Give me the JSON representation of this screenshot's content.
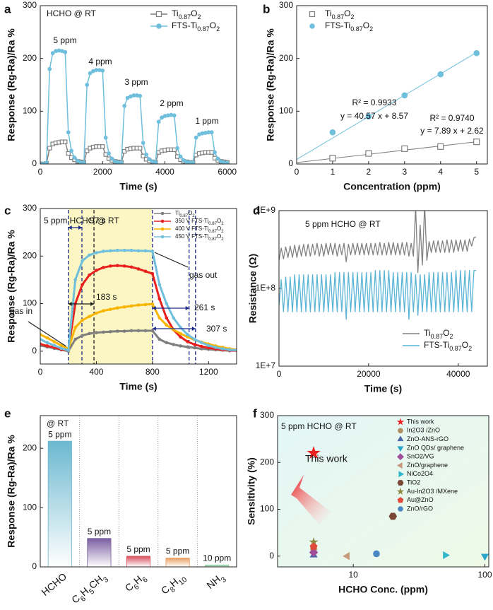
{
  "chart_data": [
    {
      "type": "line",
      "label": "a",
      "xlabel": "Time (s)",
      "ylabel": "Response (Rg-Ra)/Ra %",
      "annotations": [
        "HCHO @ RT",
        "5 ppm",
        "4 ppm",
        "3 ppm",
        "2 ppm",
        "1 ppm"
      ],
      "xlim": [
        0,
        6300
      ],
      "ylim": [
        0,
        300
      ],
      "xticks": [
        0,
        2000,
        4000,
        6000
      ],
      "yticks": [
        0,
        100,
        200,
        300
      ],
      "x": [
        0,
        100,
        200,
        300,
        400,
        500,
        600,
        700,
        800,
        900,
        1000,
        1100,
        1200,
        1300,
        1400,
        1500,
        1600,
        1700,
        1800,
        1900,
        2000,
        2100,
        2200,
        2300,
        2400,
        2500,
        2600,
        2700,
        2800,
        2900,
        3000,
        3100,
        3200,
        3300,
        3400,
        3500,
        3600,
        3700,
        3800,
        3900,
        4000,
        4100,
        4200,
        4300,
        4400,
        4500,
        4600,
        4700,
        4800,
        4900,
        5000,
        5100,
        5200,
        5300,
        5400,
        5500,
        5600,
        5700,
        5800,
        5900,
        6000
      ],
      "series": [
        {
          "name": "Ti0.87O2",
          "color": "#7f7f7f",
          "marker": "square",
          "values": [
            0,
            0,
            1,
            30,
            38,
            40,
            41,
            42,
            42,
            20,
            12,
            8,
            5,
            4,
            3,
            25,
            30,
            32,
            33,
            33,
            33,
            18,
            10,
            7,
            5,
            4,
            3,
            24,
            28,
            29,
            30,
            30,
            30,
            15,
            9,
            6,
            4,
            3,
            22,
            25,
            26,
            27,
            27,
            27,
            14,
            8,
            5,
            4,
            3,
            3,
            17,
            20,
            21,
            22,
            22,
            22,
            11,
            7,
            5,
            4,
            3
          ]
        },
        {
          "name": "FTS-Ti0.87O2",
          "color": "#6fbfdc",
          "marker": "circle",
          "values": [
            0,
            0,
            2,
            180,
            210,
            214,
            215,
            214,
            212,
            60,
            25,
            12,
            6,
            3,
            2,
            150,
            172,
            176,
            178,
            178,
            177,
            50,
            20,
            10,
            5,
            3,
            2,
            110,
            125,
            128,
            130,
            130,
            129,
            40,
            18,
            9,
            5,
            3,
            80,
            88,
            91,
            92,
            93,
            92,
            30,
            14,
            7,
            4,
            3,
            2,
            50,
            56,
            58,
            59,
            60,
            60,
            22,
            10,
            5,
            3,
            2
          ]
        }
      ]
    },
    {
      "type": "scatter",
      "label": "b",
      "xlabel": "Concentration (ppm)",
      "ylabel": "Response (Rg-Ra)/Ra %",
      "xlim": [
        0,
        5.3
      ],
      "ylim": [
        0,
        300
      ],
      "xticks": [
        0,
        1,
        2,
        3,
        4,
        5
      ],
      "yticks": [
        0,
        100,
        200,
        300
      ],
      "x": [
        1,
        2,
        3,
        4,
        5
      ],
      "series": [
        {
          "name": "Ti0.87O2",
          "color": "#7f7f7f",
          "marker": "square",
          "values": [
            11,
            20,
            29,
            33,
            42
          ],
          "fit_slope": 7.89,
          "fit_intercept": 2.62,
          "r2_text": "R² = 0.9740",
          "equation": "y = 7.89 x + 2.62"
        },
        {
          "name": "FTS-Ti0.87O2",
          "color": "#6fbfdc",
          "marker": "circle",
          "values": [
            60,
            90,
            130,
            170,
            210
          ],
          "fit_slope": 40.57,
          "fit_intercept": 8.57,
          "r2_text": "R² = 0.9933",
          "equation": "y = 40.57 x + 8.57"
        }
      ]
    },
    {
      "type": "line",
      "label": "c",
      "xlabel": "Time (s)",
      "ylabel": "Response (Rg-Ra)/Ra %",
      "annotations": [
        "5 ppm HCHO @ RT",
        "97 s",
        "183 s",
        "261 s",
        "307 s",
        "gas in",
        "gas out"
      ],
      "highlight_x": [
        200,
        800
      ],
      "reference_lines_x": [
        200,
        297,
        383,
        800,
        1061,
        1107
      ],
      "xlim": [
        0,
        1400
      ],
      "ylim": [
        -27,
        300
      ],
      "xticks": [
        0,
        400,
        800,
        1200
      ],
      "yticks": [
        0,
        100,
        200,
        300
      ],
      "x": [
        0,
        50,
        100,
        150,
        200,
        250,
        300,
        350,
        400,
        450,
        500,
        550,
        600,
        650,
        700,
        750,
        800,
        850,
        900,
        950,
        1000,
        1050,
        1100,
        1150,
        1200,
        1250,
        1300,
        1350,
        1400
      ],
      "series": [
        {
          "name": "Ti0.87O2",
          "color": "#7f7f7f",
          "marker": "circle",
          "values": [
            12,
            9,
            6,
            3,
            0,
            25,
            33,
            37,
            39,
            40,
            41,
            42,
            42,
            43,
            43,
            43,
            43,
            25,
            18,
            14,
            11,
            9,
            7,
            5,
            4,
            3,
            2,
            1,
            1
          ]
        },
        {
          "name": "350 V FTS-Ti0.87O2",
          "color": "#e8201e",
          "marker": "circle",
          "values": [
            15,
            11,
            8,
            4,
            2,
            100,
            140,
            160,
            170,
            176,
            179,
            180,
            179,
            177,
            173,
            168,
            163,
            110,
            70,
            45,
            30,
            20,
            14,
            10,
            7,
            5,
            3,
            2,
            1
          ]
        },
        {
          "name": "400 V FTS-Ti0.87O2",
          "color": "#f7b500",
          "marker": "circle",
          "values": [
            35,
            28,
            20,
            12,
            5,
            50,
            65,
            73,
            80,
            85,
            88,
            91,
            93,
            95,
            97,
            98,
            99,
            70,
            55,
            45,
            37,
            30,
            24,
            19,
            15,
            11,
            8,
            5,
            3
          ]
        },
        {
          "name": "450 V FTS-Ti0.87O2",
          "color": "#6fbfdc",
          "marker": "circle",
          "values": [
            25,
            18,
            12,
            6,
            2,
            150,
            190,
            202,
            207,
            210,
            211,
            212,
            212,
            212,
            211,
            211,
            210,
            140,
            100,
            70,
            50,
            35,
            25,
            18,
            12,
            8,
            5,
            3,
            2
          ]
        }
      ]
    },
    {
      "type": "line",
      "label": "d",
      "xlabel": "Time (s)",
      "ylabel": "Resistance (Ω)",
      "ylog": true,
      "annotations": [
        "5 ppm HCHO @ RT"
      ],
      "xlim": [
        0,
        46500
      ],
      "ylim": [
        10000000,
        1000000000
      ],
      "xticks": [
        0,
        20000,
        40000
      ],
      "yticks": [
        {
          "value": 10000000,
          "label": "1E+7"
        },
        {
          "value": 100000000,
          "label": "1E+8"
        },
        {
          "value": 1000000000,
          "label": "1E+9"
        }
      ],
      "x": [
        0,
        500,
        1000,
        1500,
        2000,
        2500,
        3000,
        3500,
        4000,
        4500,
        5000,
        5500,
        6000,
        6500,
        7000,
        7500,
        8000,
        8500,
        9000,
        9500,
        10000,
        10500,
        11000,
        11500,
        12000,
        12500,
        13000,
        13500,
        14000,
        14500,
        15000,
        15500,
        16000,
        16500,
        17000,
        17500,
        18000,
        18500,
        19000,
        19500,
        20000,
        20500,
        21000,
        21500,
        22000,
        22500,
        23000,
        23500,
        24000,
        24500,
        25000,
        25500,
        26000,
        26500,
        27000,
        27500,
        28000,
        28500,
        29000,
        29500,
        30000,
        30500,
        31000,
        31500,
        32000,
        32500,
        33000,
        33500,
        34000,
        34500,
        35000,
        35500,
        36000,
        36500,
        37000,
        37500,
        38000,
        38500,
        39000,
        39500,
        40000,
        40500,
        41000,
        41500,
        42000,
        42500,
        43000,
        43500,
        44000
      ],
      "series": [
        {
          "name": "Ti0.87O2",
          "color": "#808080",
          "values": [
            230000000.0,
            330000000.0,
            240000000.0,
            340000000.0,
            250000000.0,
            350000000.0,
            250000000.0,
            360000000.0,
            250000000.0,
            360000000.0,
            260000000.0,
            370000000.0,
            260000000.0,
            370000000.0,
            260000000.0,
            370000000.0,
            270000000.0,
            380000000.0,
            260000000.0,
            370000000.0,
            260000000.0,
            380000000.0,
            270000000.0,
            380000000.0,
            270000000.0,
            380000000.0,
            260000000.0,
            370000000.0,
            270000000.0,
            380000000.0,
            220000000.0,
            370000000.0,
            270000000.0,
            380000000.0,
            270000000.0,
            380000000.0,
            270000000.0,
            380000000.0,
            270000000.0,
            380000000.0,
            270000000.0,
            380000000.0,
            270000000.0,
            380000000.0,
            270000000.0,
            390000000.0,
            270000000.0,
            380000000.0,
            270000000.0,
            390000000.0,
            270000000.0,
            390000000.0,
            270000000.0,
            380000000.0,
            270000000.0,
            390000000.0,
            270000000.0,
            390000000.0,
            260000000.0,
            380000000.0,
            260000000.0,
            1100000000.0,
            160000000.0,
            650000000.0,
            200000000.0,
            1200000000.0,
            230000000.0,
            400000000.0,
            290000000.0,
            410000000.0,
            290000000.0,
            410000000.0,
            290000000.0,
            410000000.0,
            290000000.0,
            420000000.0,
            290000000.0,
            420000000.0,
            290000000.0,
            420000000.0,
            300000000.0,
            420000000.0,
            300000000.0,
            420000000.0,
            300000000.0,
            430000000.0,
            350000000.0,
            450000000.0,
            460000000.0
          ]
        },
        {
          "name": "FTS-Ti0.87O2",
          "color": "#5ab4d6",
          "values": [
            60000000.0,
            130000000.0,
            50000000.0,
            140000000.0,
            50000000.0,
            140000000.0,
            50000000.0,
            150000000.0,
            50000000.0,
            150000000.0,
            50000000.0,
            150000000.0,
            50000000.0,
            150000000.0,
            50000000.0,
            150000000.0,
            50000000.0,
            150000000.0,
            50000000.0,
            150000000.0,
            50000000.0,
            150000000.0,
            50000000.0,
            150000000.0,
            50000000.0,
            160000000.0,
            50000000.0,
            160000000.0,
            50000000.0,
            160000000.0,
            40000000.0,
            160000000.0,
            50000000.0,
            160000000.0,
            50000000.0,
            160000000.0,
            50000000.0,
            160000000.0,
            50000000.0,
            160000000.0,
            50000000.0,
            160000000.0,
            50000000.0,
            170000000.0,
            50000000.0,
            170000000.0,
            50000000.0,
            170000000.0,
            50000000.0,
            170000000.0,
            50000000.0,
            160000000.0,
            50000000.0,
            160000000.0,
            50000000.0,
            160000000.0,
            50000000.0,
            160000000.0,
            40000000.0,
            160000000.0,
            50000000.0,
            150000000.0,
            45000000.0,
            150000000.0,
            50000000.0,
            150000000.0,
            50000000.0,
            160000000.0,
            50000000.0,
            160000000.0,
            50000000.0,
            160000000.0,
            50000000.0,
            160000000.0,
            50000000.0,
            160000000.0,
            50000000.0,
            160000000.0,
            50000000.0,
            170000000.0,
            50000000.0,
            170000000.0,
            50000000.0,
            170000000.0,
            50000000.0,
            170000000.0,
            50000000.0,
            170000000.0,
            170000000.0
          ]
        }
      ]
    },
    {
      "type": "bar",
      "label": "e",
      "ylabel": "Response (Rg-Ra)/Ra %",
      "annotations": [
        "@ RT"
      ],
      "categories": [
        "HCHO",
        "C6H5CH3",
        "C6H6",
        "C8H10",
        "NH3"
      ],
      "values": [
        212,
        48,
        18,
        15,
        3
      ],
      "concentrations": [
        "5 ppm",
        "5 ppm",
        "5 ppm",
        "5 ppm",
        "10 ppm"
      ],
      "colors": [
        "#6bb8d0",
        "#7a5ea0",
        "#d8505e",
        "#eba064",
        "#74c48a"
      ],
      "ylim": [
        0,
        255
      ],
      "yticks": [
        0,
        100,
        200
      ]
    },
    {
      "type": "scatter",
      "label": "f",
      "xlabel": "HCHO Conc. (ppm)",
      "ylabel": "Sensitivity (%)",
      "xlog": true,
      "annotations": [
        "5 ppm HCHO @ RT",
        "This work"
      ],
      "xlim": [
        2.66,
        107
      ],
      "ylim": [
        -23,
        300
      ],
      "xticks": [
        10,
        100
      ],
      "yticks": [
        0,
        100,
        200,
        300
      ],
      "points": [
        {
          "name": "This work",
          "x": 5,
          "y": 220,
          "color": "#e8201e",
          "marker": "star"
        },
        {
          "name": "In2O3 /ZnO",
          "x": 5,
          "y": 15,
          "color": "#b09060",
          "marker": "circle"
        },
        {
          "name": "ZnO-ANS-rGO",
          "x": 5,
          "y": 2,
          "color": "#4a66a8",
          "marker": "triangle-up"
        },
        {
          "name": "ZnO QDs/ graphene",
          "x": 100,
          "y": 0,
          "color": "#2aa6c8",
          "marker": "triangle-down"
        },
        {
          "name": "SnO2/VG",
          "x": 5,
          "y": 8,
          "color": "#a0509a",
          "marker": "diamond"
        },
        {
          "name": "ZnO/graphene",
          "x": 9,
          "y": 0,
          "color": "#c49a7a",
          "marker": "triangle-left"
        },
        {
          "name": "NiCo2O4",
          "x": 50,
          "y": 2,
          "color": "#2fb6c8",
          "marker": "triangle-right"
        },
        {
          "name": "TiO2",
          "x": 20,
          "y": 85,
          "color": "#7a4636",
          "marker": "hexagon"
        },
        {
          "name": "Au-In2O3 /MXene",
          "x": 5,
          "y": 30,
          "color": "#8a8a40",
          "marker": "star"
        },
        {
          "name": "Au@ZnO",
          "x": 5,
          "y": 20,
          "color": "#e04a3a",
          "marker": "pentagon"
        },
        {
          "name": "ZnO/rGO",
          "x": 15,
          "y": 5,
          "color": "#4a86c4",
          "marker": "circle"
        }
      ]
    }
  ]
}
